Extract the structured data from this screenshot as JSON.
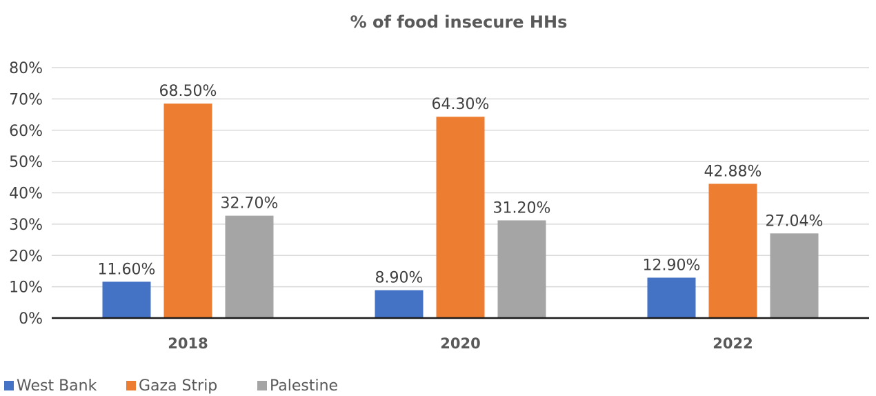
{
  "chart_data": {
    "type": "bar",
    "title": "% of food insecure HHs",
    "categories": [
      "2018",
      "2020",
      "2022"
    ],
    "series": [
      {
        "name": "West Bank",
        "color": "#4472C4",
        "values": [
          11.6,
          8.9,
          12.9
        ],
        "labels": [
          "11.60%",
          "8.90%",
          "12.90%"
        ]
      },
      {
        "name": "Gaza Strip",
        "color": "#ED7D31",
        "values": [
          68.5,
          64.3,
          42.88
        ],
        "labels": [
          "68.50%",
          "64.30%",
          "42.88%"
        ]
      },
      {
        "name": "Palestine",
        "color": "#A5A5A5",
        "values": [
          32.7,
          31.2,
          27.04
        ],
        "labels": [
          "32.70%",
          "31.20%",
          "27.04%"
        ]
      }
    ],
    "ylim": [
      0,
      80
    ],
    "yticks": [
      0,
      10,
      20,
      30,
      40,
      50,
      60,
      70,
      80
    ],
    "ytick_labels": [
      "0%",
      "10%",
      "20%",
      "30%",
      "40%",
      "50%",
      "60%",
      "70%",
      "80%"
    ],
    "xlabel": "",
    "ylabel": "",
    "grid": true,
    "legend_position": "bottom-left"
  }
}
